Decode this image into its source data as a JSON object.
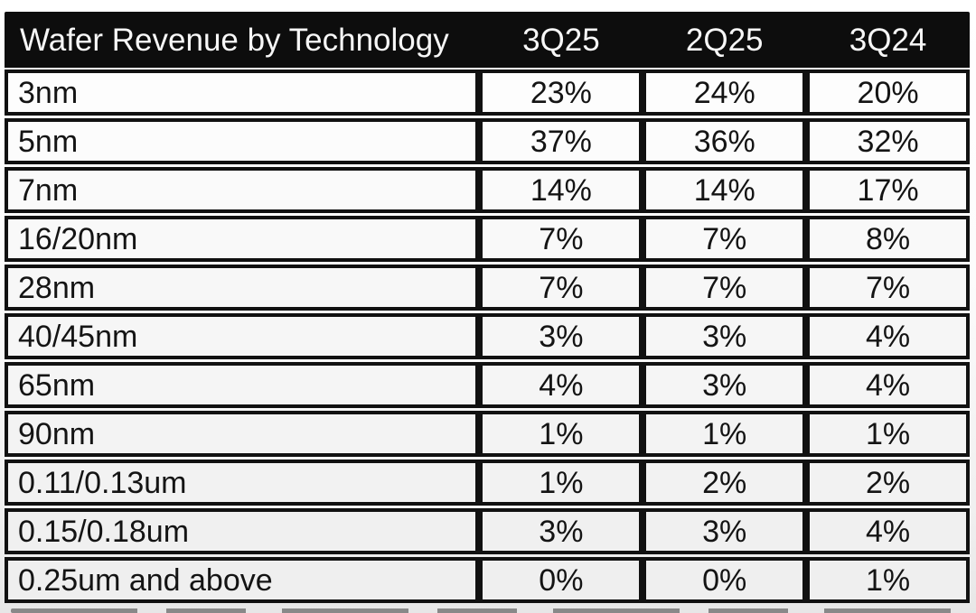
{
  "table": {
    "title": "Wafer Revenue by Technology",
    "columns": [
      "3Q25",
      "2Q25",
      "3Q24"
    ],
    "rows": [
      {
        "label": "3nm",
        "values": [
          "23%",
          "24%",
          "20%"
        ]
      },
      {
        "label": "5nm",
        "values": [
          "37%",
          "36%",
          "32%"
        ]
      },
      {
        "label": "7nm",
        "values": [
          "14%",
          "14%",
          "17%"
        ]
      },
      {
        "label": "16/20nm",
        "values": [
          "7%",
          "7%",
          "8%"
        ]
      },
      {
        "label": "28nm",
        "values": [
          "7%",
          "7%",
          "7%"
        ]
      },
      {
        "label": "40/45nm",
        "values": [
          "3%",
          "3%",
          "4%"
        ]
      },
      {
        "label": "65nm",
        "values": [
          "4%",
          "3%",
          "4%"
        ]
      },
      {
        "label": "90nm",
        "values": [
          "1%",
          "1%",
          "1%"
        ]
      },
      {
        "label": "0.11/0.13um",
        "values": [
          "1%",
          "2%",
          "2%"
        ]
      },
      {
        "label": "0.15/0.18um",
        "values": [
          "3%",
          "3%",
          "4%"
        ]
      },
      {
        "label": "0.25um and above",
        "values": [
          "0%",
          "0%",
          "1%"
        ]
      }
    ]
  },
  "colors": {
    "header_bg": "#0d0d0d",
    "header_text": "#f7f7f7",
    "border": "#111111",
    "row_bg_top": "#fdfdfd",
    "row_bg_bottom": "#efefef",
    "page_bg_bottom": "#e7e7e7"
  },
  "chart_data": {
    "type": "table",
    "title": "Wafer Revenue by Technology",
    "columns": [
      "3Q25",
      "2Q25",
      "3Q24"
    ],
    "categories": [
      "3nm",
      "5nm",
      "7nm",
      "16/20nm",
      "28nm",
      "40/45nm",
      "65nm",
      "90nm",
      "0.11/0.13um",
      "0.15/0.18um",
      "0.25um and above"
    ],
    "series": [
      {
        "name": "3Q25",
        "values": [
          23,
          37,
          14,
          7,
          7,
          3,
          4,
          1,
          1,
          3,
          0
        ]
      },
      {
        "name": "2Q25",
        "values": [
          24,
          36,
          14,
          7,
          7,
          3,
          3,
          1,
          2,
          3,
          0
        ]
      },
      {
        "name": "3Q24",
        "values": [
          20,
          32,
          17,
          8,
          7,
          4,
          4,
          1,
          2,
          4,
          1
        ]
      }
    ],
    "unit": "%"
  }
}
